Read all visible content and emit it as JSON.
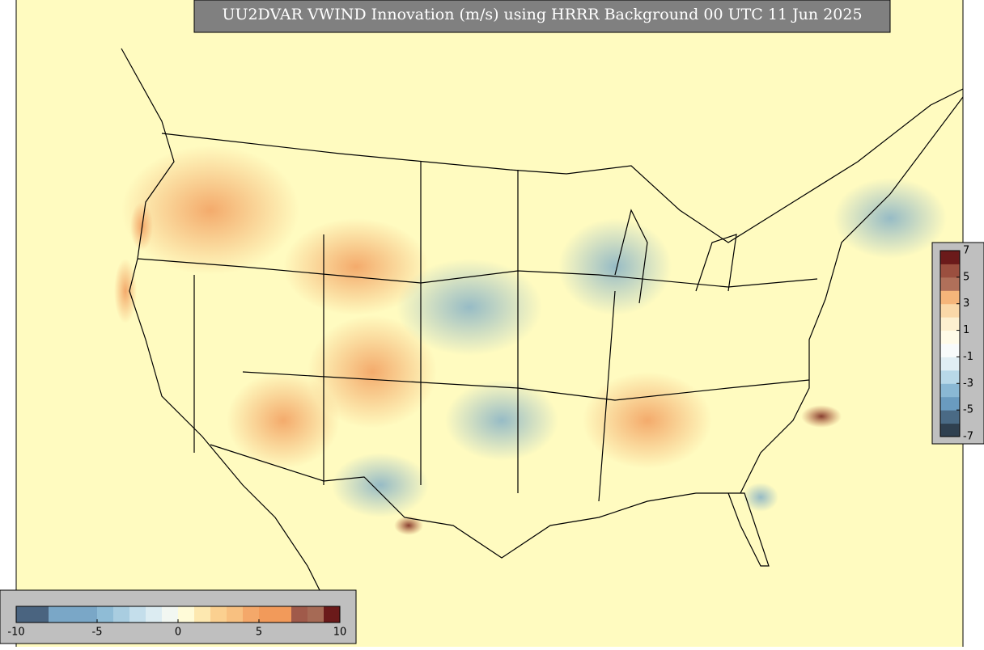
{
  "title": "UU2DVAR VWIND Innovation (m/s) using HRRR Background 00 UTC 11 Jun 2025",
  "colorbars": [
    {
      "orientation": "vertical",
      "lim": [
        -7,
        7
      ],
      "ticks": [
        7,
        5,
        3,
        1,
        -1,
        -3,
        -5,
        -7
      ],
      "colors": [
        "#2f4050",
        "#4a6a85",
        "#6a9bbf",
        "#8ab8d4",
        "#b8d8e8",
        "#e0eef4",
        "#f8fbfb",
        "#fffbe8",
        "#fdf0d0",
        "#fad8a8",
        "#f5b57a",
        "#b0705a",
        "#9b4f3f",
        "#6b1a1a"
      ]
    },
    {
      "orientation": "horizontal",
      "lim": [
        -10,
        10
      ],
      "ticks": [
        -10,
        -5,
        0,
        5,
        10
      ],
      "colors": [
        "#4a6480",
        "#4a6480",
        "#7aa7c7",
        "#7aa7c7",
        "#7aa7c7",
        "#8fbcd6",
        "#a9cde0",
        "#c4deeb",
        "#dcecf2",
        "#f2f7f2",
        "#fffbd8",
        "#fde8b0",
        "#fbd090",
        "#f8c080",
        "#f4a86a",
        "#f29a5a",
        "#f29a5a",
        "#a05a4a",
        "#a66a55",
        "#6b1a1a"
      ]
    }
  ]
}
